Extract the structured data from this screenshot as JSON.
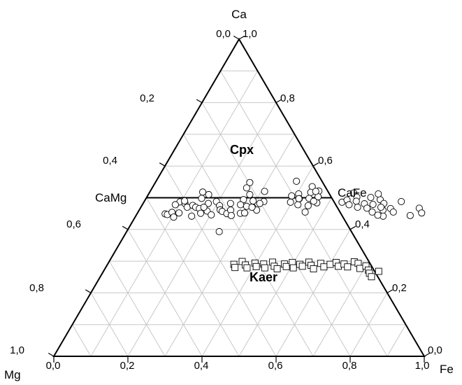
{
  "chart_data": {
    "type": "scatter",
    "subtype": "ternary",
    "vertices": {
      "top": "Ca",
      "left": "Mg",
      "right": "Fe"
    },
    "tick_values": [
      0,
      0.2,
      0.4,
      0.6,
      0.8,
      1.0
    ],
    "tick_labels": {
      "top_vertex": [
        "0,0",
        "1,0"
      ],
      "left_edge": [
        "0,2",
        "0,4",
        "0,6",
        "0,8",
        "1,0"
      ],
      "right_edge": [
        "0,8",
        "0,6",
        "0,4",
        "0,2",
        "0,0"
      ],
      "bottom_edge": [
        "0,0",
        "0,2",
        "0,4",
        "0,6",
        "0,8",
        "1,0"
      ]
    },
    "grid": true,
    "grid_step": 0.1,
    "join_line": {
      "ca": 0.5,
      "left_label": "CaMg",
      "right_label": "CaFe"
    },
    "series": [
      {
        "name": "Cpx",
        "marker": "circle",
        "points": [
          [
            0.449,
            0.076
          ],
          [
            0.447,
            0.083
          ],
          [
            0.454,
            0.092
          ],
          [
            0.487,
            0.097
          ],
          [
            0.478,
            0.089
          ],
          [
            0.439,
            0.104
          ],
          [
            0.452,
            0.112
          ],
          [
            0.482,
            0.113
          ],
          [
            0.47,
            0.125
          ],
          [
            0.49,
            0.108
          ],
          [
            0.476,
            0.137
          ],
          [
            0.47,
            0.148
          ],
          [
            0.442,
            0.151
          ],
          [
            0.466,
            0.16
          ],
          [
            0.451,
            0.171
          ],
          [
            0.482,
            0.176
          ],
          [
            0.458,
            0.185
          ],
          [
            0.488,
            0.195
          ],
          [
            0.446,
            0.202
          ],
          [
            0.475,
            0.21
          ],
          [
            0.462,
            0.218
          ],
          [
            0.498,
            0.15
          ],
          [
            0.518,
            0.143
          ],
          [
            0.51,
            0.163
          ],
          [
            0.457,
            0.226
          ],
          [
            0.482,
            0.236
          ],
          [
            0.45,
            0.242
          ],
          [
            0.47,
            0.17
          ],
          [
            0.393,
            0.25
          ],
          [
            0.548,
            0.255
          ],
          [
            0.531,
            0.255
          ],
          [
            0.494,
            0.265
          ],
          [
            0.51,
            0.274
          ],
          [
            0.473,
            0.284
          ],
          [
            0.49,
            0.293
          ],
          [
            0.461,
            0.247
          ],
          [
            0.444,
            0.257
          ],
          [
            0.47,
            0.302
          ],
          [
            0.478,
            0.265
          ],
          [
            0.52,
            0.309
          ],
          [
            0.461,
            0.317
          ],
          [
            0.488,
            0.323
          ],
          [
            0.47,
            0.3
          ],
          [
            0.451,
            0.278
          ],
          [
            0.482,
            0.315
          ],
          [
            0.452,
            0.289
          ],
          [
            0.552,
            0.379
          ],
          [
            0.506,
            0.389
          ],
          [
            0.486,
            0.396
          ],
          [
            0.512,
            0.405
          ],
          [
            0.497,
            0.414
          ],
          [
            0.478,
            0.42
          ],
          [
            0.535,
            0.43
          ],
          [
            0.517,
            0.435
          ],
          [
            0.498,
            0.44
          ],
          [
            0.475,
            0.449
          ],
          [
            0.455,
            0.451
          ],
          [
            0.521,
            0.455
          ],
          [
            0.503,
            0.462
          ],
          [
            0.484,
            0.468
          ],
          [
            0.497,
            0.413
          ],
          [
            0.52,
            0.447
          ],
          [
            0.489,
            0.457
          ],
          [
            0.486,
            0.535
          ],
          [
            0.493,
            0.545
          ],
          [
            0.515,
            0.552
          ],
          [
            0.478,
            0.558
          ],
          [
            0.502,
            0.567
          ],
          [
            0.489,
            0.572
          ],
          [
            0.47,
            0.585
          ],
          [
            0.481,
            0.598
          ],
          [
            0.501,
            0.605
          ],
          [
            0.467,
            0.612
          ],
          [
            0.479,
            0.622
          ],
          [
            0.494,
            0.634
          ],
          [
            0.512,
            0.62
          ],
          [
            0.455,
            0.632
          ],
          [
            0.482,
            0.65
          ],
          [
            0.461,
            0.658
          ],
          [
            0.442,
            0.668
          ],
          [
            0.466,
            0.676
          ],
          [
            0.488,
            0.694
          ],
          [
            0.455,
            0.689
          ],
          [
            0.47,
            0.648
          ],
          [
            0.445,
            0.652
          ],
          [
            0.444,
            0.74
          ],
          [
            0.467,
            0.753
          ],
          [
            0.452,
            0.767
          ]
        ]
      },
      {
        "name": "Kaer",
        "marker": "square",
        "points": [
          [
            0.29,
            0.341
          ],
          [
            0.28,
            0.349
          ],
          [
            0.299,
            0.359
          ],
          [
            0.288,
            0.373
          ],
          [
            0.279,
            0.382
          ],
          [
            0.294,
            0.396
          ],
          [
            0.283,
            0.405
          ],
          [
            0.291,
            0.421
          ],
          [
            0.279,
            0.43
          ],
          [
            0.297,
            0.442
          ],
          [
            0.284,
            0.453
          ],
          [
            0.276,
            0.465
          ],
          [
            0.291,
            0.477
          ],
          [
            0.283,
            0.486
          ],
          [
            0.296,
            0.496
          ],
          [
            0.279,
            0.507
          ],
          [
            0.29,
            0.519
          ],
          [
            0.284,
            0.529
          ],
          [
            0.297,
            0.54
          ],
          [
            0.287,
            0.551
          ],
          [
            0.276,
            0.563
          ],
          [
            0.293,
            0.574
          ],
          [
            0.282,
            0.588
          ],
          [
            0.29,
            0.601
          ],
          [
            0.296,
            0.614
          ],
          [
            0.284,
            0.626
          ],
          [
            0.291,
            0.638
          ],
          [
            0.282,
            0.652
          ],
          [
            0.298,
            0.662
          ],
          [
            0.293,
            0.675
          ],
          [
            0.277,
            0.688
          ],
          [
            0.285,
            0.7
          ],
          [
            0.272,
            0.713
          ],
          [
            0.262,
            0.721
          ],
          [
            0.251,
            0.732
          ],
          [
            0.268,
            0.743
          ]
        ]
      }
    ]
  }
}
